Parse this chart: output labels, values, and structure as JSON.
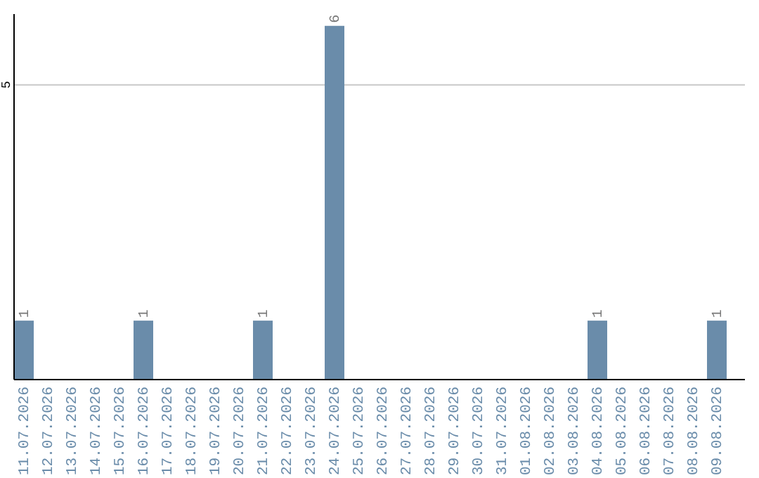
{
  "chart_data": {
    "type": "bar",
    "categories": [
      "11.07.2026",
      "12.07.2026",
      "13.07.2026",
      "14.07.2026",
      "15.07.2026",
      "16.07.2026",
      "17.07.2026",
      "18.07.2026",
      "19.07.2026",
      "20.07.2026",
      "21.07.2026",
      "22.07.2026",
      "23.07.2026",
      "24.07.2026",
      "25.07.2026",
      "26.07.2026",
      "27.07.2026",
      "28.07.2026",
      "29.07.2026",
      "30.07.2026",
      "31.07.2026",
      "01.08.2026",
      "02.08.2026",
      "03.08.2026",
      "04.08.2026",
      "05.08.2026",
      "06.08.2026",
      "07.08.2026",
      "08.08.2026",
      "09.08.2026"
    ],
    "values": [
      1,
      0,
      0,
      0,
      0,
      1,
      0,
      0,
      0,
      0,
      1,
      0,
      0,
      6,
      0,
      0,
      0,
      0,
      0,
      0,
      0,
      0,
      0,
      0,
      1,
      0,
      0,
      0,
      0,
      1
    ],
    "value_labels": [
      "1",
      null,
      null,
      null,
      null,
      "1",
      null,
      null,
      null,
      null,
      "1",
      null,
      null,
      "6",
      null,
      null,
      null,
      null,
      null,
      null,
      null,
      null,
      null,
      null,
      "1",
      null,
      null,
      null,
      null,
      "1"
    ],
    "color": "#6a8caa",
    "ylim": [
      0,
      6.2
    ],
    "yticks": [
      5
    ],
    "grid": "y"
  }
}
